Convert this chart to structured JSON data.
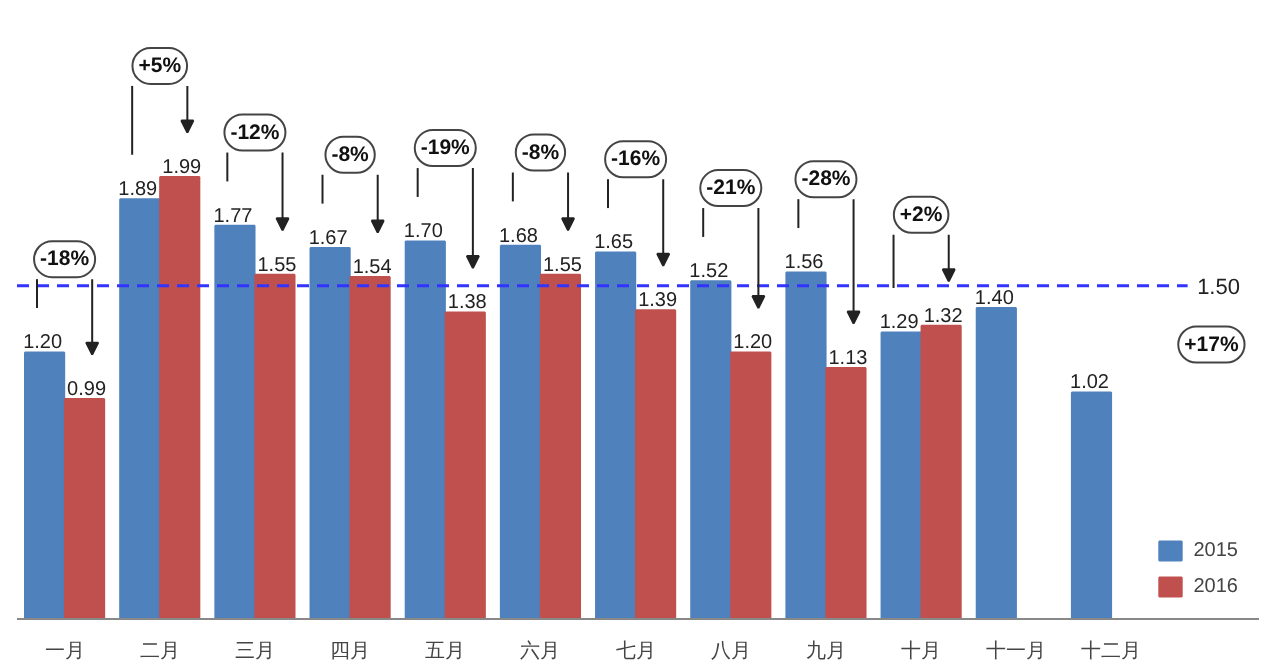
{
  "chart_data": {
    "type": "bar",
    "categories": [
      "一月",
      "二月",
      "三月",
      "四月",
      "五月",
      "六月",
      "七月",
      "八月",
      "九月",
      "十月",
      "十一月",
      "十二月"
    ],
    "series": [
      {
        "name": "2015",
        "color": "#4f81bd",
        "values": [
          1.2,
          1.89,
          1.77,
          1.67,
          1.7,
          1.68,
          1.65,
          1.52,
          1.56,
          1.29,
          1.4,
          1.02
        ],
        "value_labels": [
          "1.20",
          "1.89",
          "1.77",
          "1.67",
          "1.70",
          "1.68",
          "1.65",
          "1.52",
          "1.56",
          "1.29",
          "1.40",
          "1.02"
        ]
      },
      {
        "name": "2016",
        "color": "#c0504d",
        "values": [
          0.99,
          1.99,
          1.55,
          1.54,
          1.38,
          1.55,
          1.39,
          1.2,
          1.13,
          1.32,
          null,
          null
        ],
        "value_labels": [
          "0.99",
          "1.99",
          "1.55",
          "1.54",
          "1.38",
          "1.55",
          "1.39",
          "1.20",
          "1.13",
          "1.32",
          null,
          null
        ]
      }
    ],
    "ref_lines": [
      {
        "axis": "y",
        "value": 1.5,
        "label": "1.50",
        "color": "#3333ff",
        "line_style": "dashed"
      }
    ],
    "annotations": [
      "-18%",
      "+5%",
      "-12%",
      "-8%",
      "-19%",
      "-8%",
      "-16%",
      "-21%",
      "-28%",
      "+2%",
      "+17%"
    ],
    "legend": "bottom right"
  }
}
